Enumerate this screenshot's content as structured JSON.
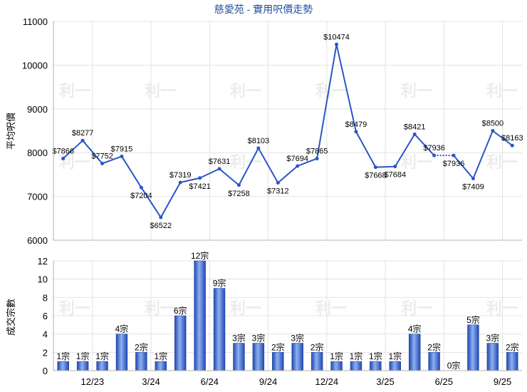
{
  "chart_data": [
    {
      "type": "line",
      "title": "慈愛苑 - 實用呎價走勢",
      "ylabel": "平均呎價",
      "ylim": [
        6000,
        11000
      ],
      "yticks": [
        6000,
        7000,
        8000,
        9000,
        10000,
        11000
      ],
      "grid": true,
      "series": [
        {
          "values": [
            7866,
            8277,
            7752,
            7915,
            7204,
            6522,
            7319,
            7421,
            7631,
            7258,
            8103,
            7312,
            7694,
            7865,
            10474,
            8479,
            7668,
            7684,
            8421,
            7936,
            7936,
            7409,
            8500,
            8163
          ],
          "labels": [
            "$7866",
            "$8277",
            "$7752",
            "$7915",
            "$7204",
            "$6522",
            "$7319",
            "$7421",
            "$7631",
            "$7258",
            "$8103",
            "$7312",
            "$7694",
            "$7865",
            "$10474",
            "$8479",
            "$7668",
            "$7684",
            "$8421",
            "$7936",
            "$7936",
            "$7409",
            "$8500",
            "$8163"
          ],
          "color": "#2a56c6",
          "dotted_segment_between_points": [
            19,
            20
          ]
        }
      ]
    },
    {
      "type": "bar",
      "ylabel": "成交宗數",
      "ylim": [
        0,
        12
      ],
      "yticks": [
        0,
        2,
        4,
        6,
        8,
        10,
        12
      ],
      "xticks": [
        "12/23",
        "3/24",
        "6/24",
        "9/24",
        "12/24",
        "3/25",
        "6/25",
        "9/25"
      ],
      "grid": true,
      "series": [
        {
          "values": [
            1,
            1,
            1,
            4,
            2,
            1,
            6,
            12,
            9,
            3,
            3,
            2,
            3,
            2,
            1,
            1,
            1,
            1,
            4,
            2,
            0,
            5,
            3,
            2
          ],
          "labels": [
            "1宗",
            "1宗",
            "1宗",
            "4宗",
            "2宗",
            "1宗",
            "6宗",
            "12宗",
            "9宗",
            "3宗",
            "3宗",
            "2宗",
            "3宗",
            "2宗",
            "1宗",
            "1宗",
            "1宗",
            "1宗",
            "4宗",
            "2宗",
            "0宗",
            "5宗",
            "3宗",
            "2宗"
          ],
          "color": "#3f68cf"
        }
      ]
    }
  ],
  "watermark_text": "利一"
}
